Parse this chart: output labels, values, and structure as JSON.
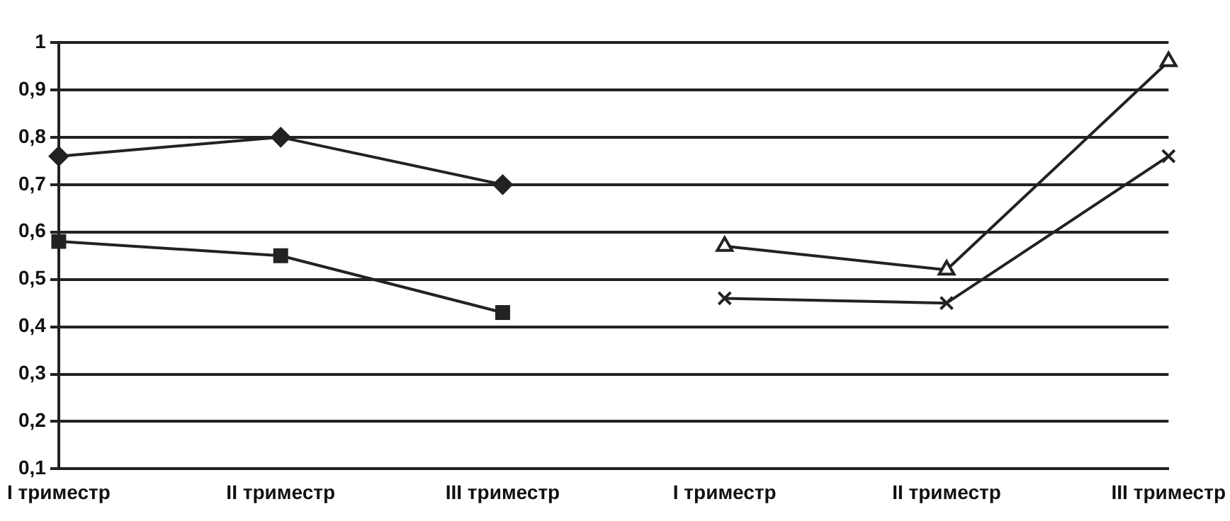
{
  "chart_data": {
    "type": "line",
    "categories": [
      "I триместр",
      "II триместр",
      "III триместр",
      "I триместр",
      "II триместр",
      "III триместр"
    ],
    "series": [
      {
        "color": "#222222",
        "marker": "diamond",
        "values": [
          0.76,
          0.8,
          0.7,
          null,
          null,
          null
        ]
      },
      {
        "color": "#222222",
        "marker": "square",
        "values": [
          0.58,
          0.55,
          0.43,
          null,
          null,
          null
        ]
      },
      {
        "color": "#222222",
        "marker": "triangle",
        "values": [
          null,
          null,
          null,
          0.57,
          0.52,
          0.96
        ]
      },
      {
        "color": "#222222",
        "marker": "cross",
        "values": [
          null,
          null,
          null,
          0.46,
          0.45,
          0.76
        ]
      }
    ],
    "ylim": [
      0.1,
      1
    ],
    "yticks": [
      {
        "value": 0.1,
        "label": "0,1"
      },
      {
        "value": 0.2,
        "label": "0,2"
      },
      {
        "value": 0.3,
        "label": "0,3"
      },
      {
        "value": 0.4,
        "label": "0,4"
      },
      {
        "value": 0.5,
        "label": "0,5"
      },
      {
        "value": 0.6,
        "label": "0,6"
      },
      {
        "value": 0.7,
        "label": "0,7"
      },
      {
        "value": 0.8,
        "label": "0,8"
      },
      {
        "value": 0.9,
        "label": "0,9"
      },
      {
        "value": 1,
        "label": "1"
      }
    ],
    "grid": "y",
    "legend": false
  }
}
